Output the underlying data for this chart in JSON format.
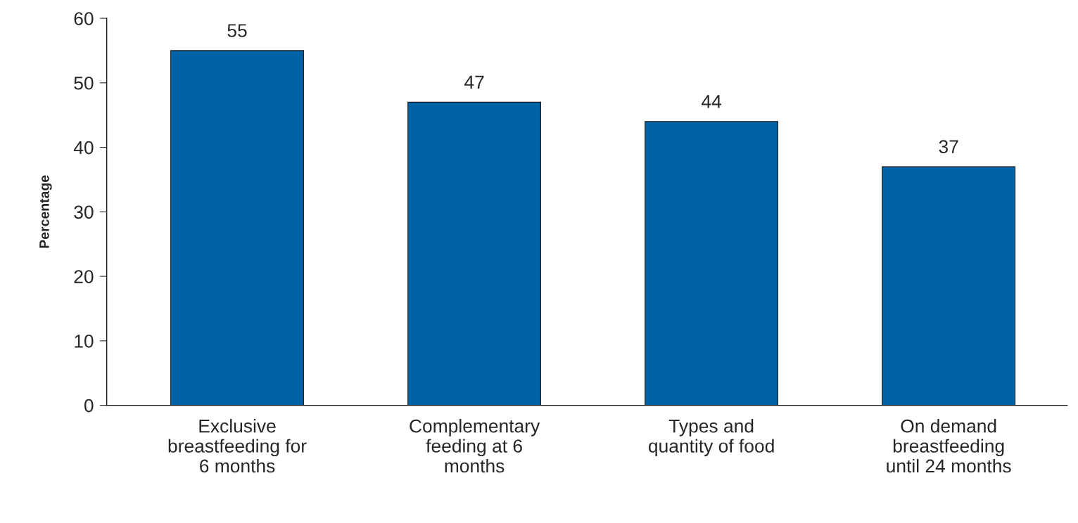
{
  "chart_data": {
    "type": "bar",
    "ylabel": "Percentage",
    "categories": [
      "Exclusive\nbreastfeeding for\n6 months",
      "Complementary\nfeeding at 6\nmonths",
      "Types and\nquantity of food",
      "On demand\nbreastfeeding\nuntil 24 months"
    ],
    "values": [
      55,
      47,
      44,
      37
    ],
    "color": "#0063a6",
    "ylim": [
      0,
      60
    ],
    "yticks": [
      0,
      10,
      20,
      30,
      40,
      50,
      60
    ],
    "data_labels": true,
    "grid": false,
    "legend": false
  }
}
